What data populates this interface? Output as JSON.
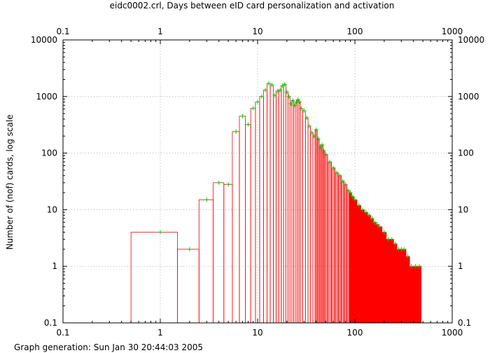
{
  "chart_data": {
    "type": "histogram",
    "title": "eidc0002.crl, Days between eID card personalization and activation",
    "ylabel": "Number of (nof) cards, log scale",
    "xlabel": "",
    "xscale": "log",
    "yscale": "log",
    "xlim": [
      0.1,
      1000
    ],
    "ylim": [
      0.1,
      10000
    ],
    "x_ticks": [
      "0.1",
      "1",
      "10",
      "100",
      "1000"
    ],
    "y_ticks": [
      "0.1",
      "1",
      "10",
      "100",
      "1000",
      "10000"
    ],
    "grid": true,
    "footer": "Graph generation: Sun Jan 30 20:44:03 2005",
    "colors": {
      "bars": "#ff0000",
      "points": "#00cc00",
      "grid": "#b0b0b0"
    },
    "series": [
      {
        "values": [
          [
            1,
            4
          ],
          [
            2,
            2
          ],
          [
            3,
            15
          ],
          [
            4,
            30
          ],
          [
            5,
            28
          ],
          [
            6,
            240
          ],
          [
            7,
            450
          ],
          [
            8,
            320
          ],
          [
            9,
            620
          ],
          [
            10,
            800
          ],
          [
            11,
            1000
          ],
          [
            12,
            1300
          ],
          [
            13,
            1700
          ],
          [
            14,
            1600
          ],
          [
            15,
            1050
          ],
          [
            16,
            1250
          ],
          [
            17,
            1300
          ],
          [
            18,
            1550
          ],
          [
            19,
            1650
          ],
          [
            20,
            1200
          ],
          [
            21,
            1000
          ],
          [
            22,
            750
          ],
          [
            23,
            850
          ],
          [
            24,
            700
          ],
          [
            25,
            800
          ],
          [
            26,
            880
          ],
          [
            27,
            800
          ],
          [
            28,
            620
          ],
          [
            30,
            560
          ],
          [
            32,
            420
          ],
          [
            34,
            300
          ],
          [
            36,
            230
          ],
          [
            38,
            200
          ],
          [
            40,
            260
          ],
          [
            42,
            180
          ],
          [
            44,
            130
          ],
          [
            46,
            140
          ],
          [
            48,
            110
          ],
          [
            50,
            95
          ],
          [
            55,
            70
          ],
          [
            60,
            55
          ],
          [
            65,
            45
          ],
          [
            70,
            40
          ],
          [
            75,
            32
          ],
          [
            80,
            28
          ],
          [
            85,
            22
          ],
          [
            90,
            20
          ],
          [
            95,
            17
          ],
          [
            100,
            15
          ],
          [
            110,
            12
          ],
          [
            120,
            10
          ],
          [
            130,
            9
          ],
          [
            140,
            8
          ],
          [
            150,
            7
          ],
          [
            160,
            6
          ],
          [
            170,
            5.5
          ],
          [
            180,
            5
          ],
          [
            200,
            4
          ],
          [
            220,
            3
          ],
          [
            240,
            3
          ],
          [
            260,
            2.5
          ],
          [
            280,
            2
          ],
          [
            300,
            2
          ],
          [
            320,
            2
          ],
          [
            350,
            1.5
          ],
          [
            380,
            1
          ],
          [
            420,
            1
          ],
          [
            460,
            1
          ]
        ]
      }
    ]
  }
}
